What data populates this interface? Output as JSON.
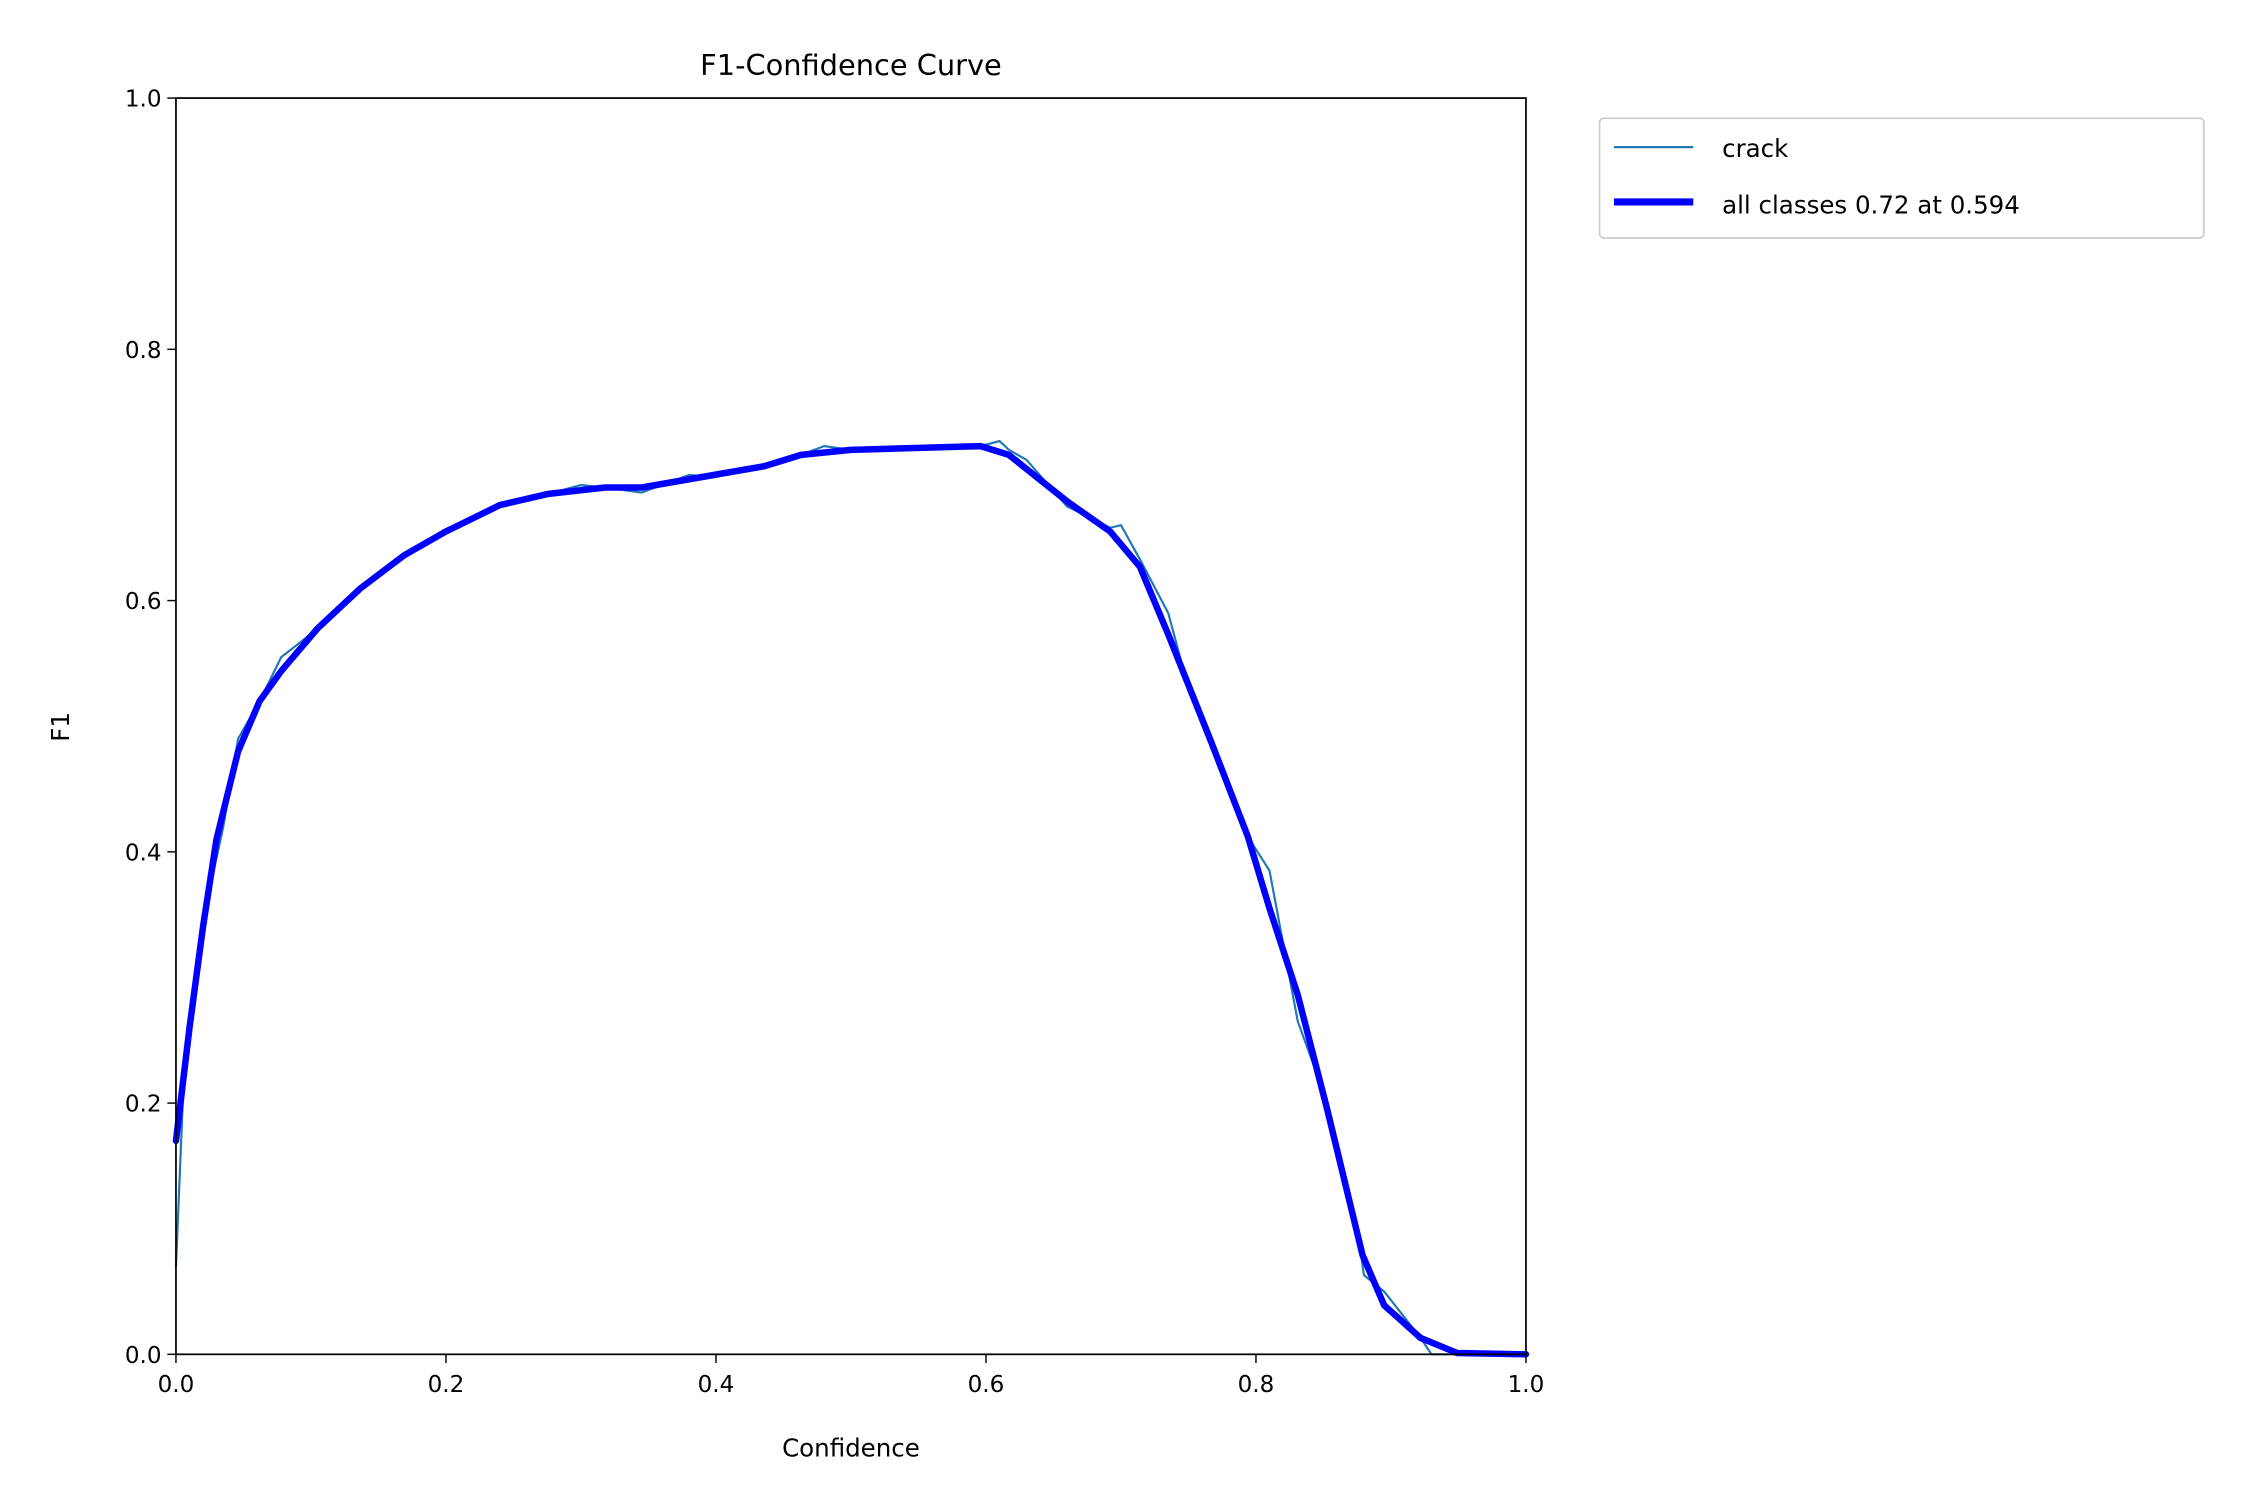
{
  "chart_data": {
    "type": "line",
    "title": "F1-Confidence Curve",
    "xlabel": "Confidence",
    "ylabel": "F1",
    "xlim": [
      0.0,
      1.0
    ],
    "ylim": [
      0.0,
      1.0
    ],
    "xticks": [
      "0.0",
      "0.2",
      "0.4",
      "0.6",
      "0.8",
      "1.0"
    ],
    "yticks": [
      "0.0",
      "0.2",
      "0.4",
      "0.6",
      "0.8",
      "1.0"
    ],
    "grid": false,
    "legend_position": "outside-top-right",
    "series": [
      {
        "name": "crack",
        "color": "#1f77b4",
        "x": [
          0.0,
          0.005,
          0.015,
          0.025,
          0.035,
          0.046,
          0.062,
          0.078,
          0.09,
          0.105,
          0.137,
          0.169,
          0.2,
          0.24,
          0.276,
          0.3,
          0.318,
          0.345,
          0.38,
          0.393,
          0.436,
          0.463,
          0.48,
          0.5,
          0.55,
          0.596,
          0.61,
          0.617,
          0.63,
          0.66,
          0.692,
          0.7,
          0.714,
          0.735,
          0.75,
          0.767,
          0.794,
          0.81,
          0.831,
          0.853,
          0.875,
          0.88,
          0.895,
          0.922,
          0.93,
          0.949,
          1.0
        ],
        "y": [
          0.07,
          0.2,
          0.31,
          0.37,
          0.42,
          0.49,
          0.52,
          0.555,
          0.565,
          0.578,
          0.61,
          0.636,
          0.657,
          0.676,
          0.685,
          0.692,
          0.69,
          0.686,
          0.7,
          0.699,
          0.707,
          0.716,
          0.723,
          0.72,
          0.72,
          0.723,
          0.727,
          0.72,
          0.712,
          0.675,
          0.658,
          0.66,
          0.633,
          0.59,
          0.53,
          0.487,
          0.412,
          0.385,
          0.265,
          0.2,
          0.1,
          0.063,
          0.05,
          0.013,
          0.0,
          0.0,
          0.0
        ]
      },
      {
        "name": "all classes 0.72 at 0.594",
        "color": "#0000ff",
        "x": [
          0.0,
          0.01,
          0.02,
          0.03,
          0.046,
          0.062,
          0.078,
          0.105,
          0.137,
          0.169,
          0.2,
          0.24,
          0.276,
          0.318,
          0.345,
          0.393,
          0.436,
          0.463,
          0.5,
          0.596,
          0.617,
          0.66,
          0.692,
          0.714,
          0.735,
          0.767,
          0.794,
          0.81,
          0.831,
          0.853,
          0.879,
          0.895,
          0.922,
          0.949,
          1.0
        ],
        "y": [
          0.17,
          0.26,
          0.34,
          0.41,
          0.48,
          0.52,
          0.544,
          0.578,
          0.61,
          0.636,
          0.655,
          0.676,
          0.685,
          0.69,
          0.69,
          0.699,
          0.707,
          0.716,
          0.72,
          0.723,
          0.716,
          0.679,
          0.655,
          0.627,
          0.573,
          0.487,
          0.412,
          0.355,
          0.286,
          0.194,
          0.079,
          0.039,
          0.013,
          0.001,
          0.0
        ]
      }
    ]
  }
}
